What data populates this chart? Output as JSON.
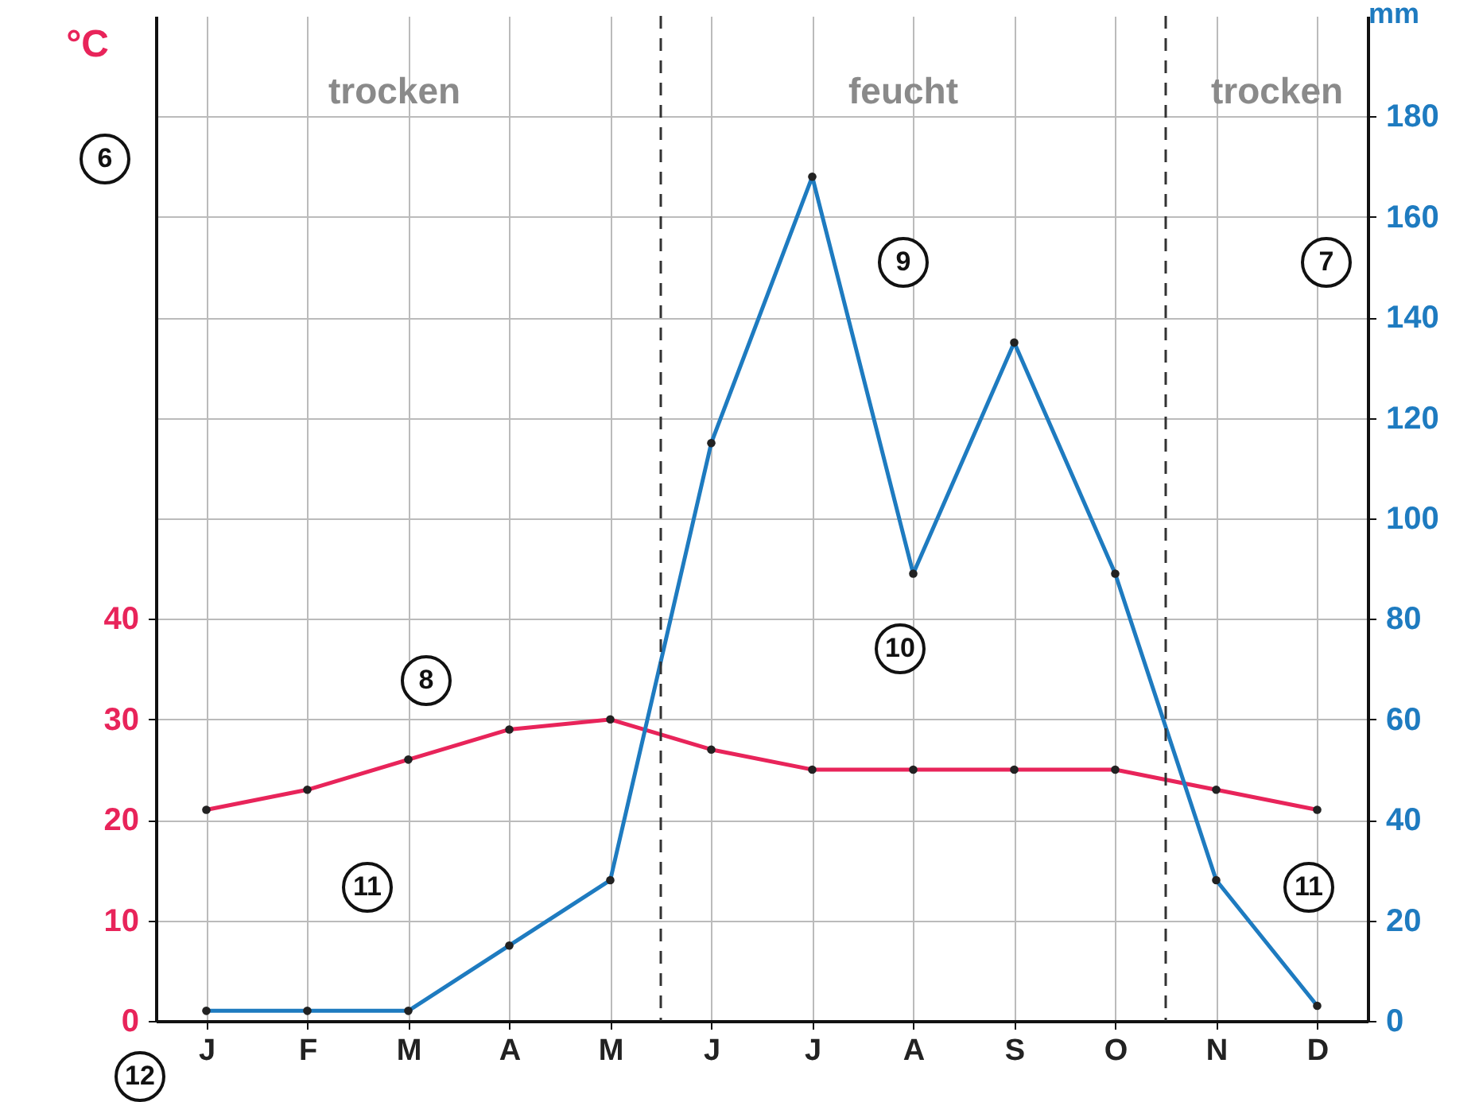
{
  "chart_data": {
    "type": "line",
    "ylabel": "°C",
    "y2label": "mm",
    "categories": [
      "J",
      "F",
      "M",
      "A",
      "M",
      "J",
      "J",
      "A",
      "S",
      "O",
      "N",
      "D"
    ],
    "ylim": [
      0,
      100
    ],
    "yticks": [
      0,
      10,
      20,
      30,
      40
    ],
    "y2lim": [
      0,
      200
    ],
    "y2ticks": [
      0,
      20,
      40,
      60,
      80,
      100,
      120,
      140,
      160,
      180
    ],
    "series": [
      {
        "color": "#e8245a",
        "values": [
          21,
          23,
          26,
          29,
          30,
          27,
          25,
          25,
          25,
          25,
          23,
          21
        ]
      },
      {
        "color": "#1e7bc0",
        "axis": "y2",
        "values": [
          2,
          2,
          2,
          15,
          28,
          115,
          168,
          89,
          135,
          89,
          28,
          3
        ]
      }
    ],
    "marker": "circle",
    "grid": true,
    "annotations": [
      "trocken",
      "feucht",
      "trocken",
      "6",
      "7",
      "8",
      "9",
      "10",
      "11",
      "11",
      "12"
    ]
  }
}
